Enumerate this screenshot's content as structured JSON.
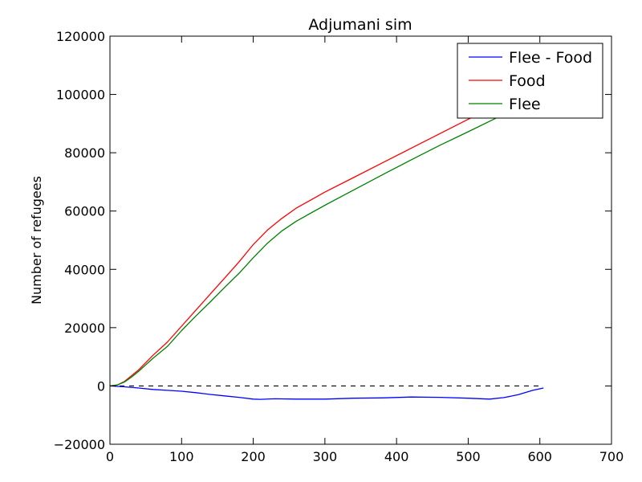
{
  "chart_data": {
    "type": "line",
    "title": "Adjumani sim",
    "xlabel": "",
    "ylabel": "Number of refugees",
    "xlim": [
      0,
      700
    ],
    "ylim": [
      -20000,
      120000
    ],
    "xticks": [
      0,
      100,
      200,
      300,
      400,
      500,
      600,
      700
    ],
    "xtick_labels": [
      "0",
      "100",
      "200",
      "300",
      "400",
      "500",
      "600",
      "700"
    ],
    "yticks": [
      -20000,
      0,
      20000,
      40000,
      60000,
      80000,
      100000,
      120000
    ],
    "ytick_labels": [
      "−20000",
      "0",
      "20000",
      "40000",
      "60000",
      "80000",
      "100000",
      "120000"
    ],
    "grid": false,
    "legend_position": "top-right",
    "reference_line": {
      "y": 0,
      "x_range": [
        0,
        600
      ],
      "style": "dashed",
      "color": "#000000"
    },
    "series": [
      {
        "name": "Flee - Food",
        "color": "#0000ff",
        "x": [
          0,
          20,
          40,
          60,
          80,
          100,
          120,
          140,
          160,
          180,
          200,
          210,
          230,
          260,
          300,
          340,
          380,
          420,
          460,
          500,
          530,
          550,
          570,
          590,
          605
        ],
        "y": [
          0,
          -300,
          -700,
          -1200,
          -1500,
          -1800,
          -2300,
          -2900,
          -3400,
          -3900,
          -4500,
          -4600,
          -4400,
          -4500,
          -4500,
          -4200,
          -4100,
          -3800,
          -3900,
          -4200,
          -4500,
          -4000,
          -3000,
          -1500,
          -700
        ]
      },
      {
        "name": "Food",
        "color": "#ff0000",
        "x": [
          0,
          10,
          20,
          30,
          40,
          60,
          80,
          100,
          120,
          140,
          160,
          180,
          200,
          220,
          240,
          260,
          300,
          340,
          380,
          420,
          460,
          500,
          540,
          580,
          605
        ],
        "y": [
          0,
          300,
          1500,
          3500,
          5500,
          10500,
          15000,
          20500,
          26000,
          31500,
          37000,
          42500,
          48500,
          53500,
          57500,
          61000,
          66500,
          71500,
          76500,
          81500,
          86500,
          91500,
          96000,
          101000,
          103500
        ]
      },
      {
        "name": "Flee",
        "color": "#008000",
        "x": [
          0,
          10,
          20,
          30,
          40,
          60,
          80,
          100,
          120,
          140,
          160,
          180,
          200,
          220,
          240,
          260,
          300,
          340,
          380,
          420,
          460,
          500,
          540,
          580,
          605
        ],
        "y": [
          0,
          300,
          1300,
          3000,
          5000,
          9500,
          13500,
          19000,
          24000,
          28800,
          33800,
          38600,
          44000,
          49000,
          53200,
          56500,
          62000,
          67200,
          72400,
          77500,
          82500,
          87200,
          92000,
          97500,
          102500
        ]
      }
    ]
  }
}
